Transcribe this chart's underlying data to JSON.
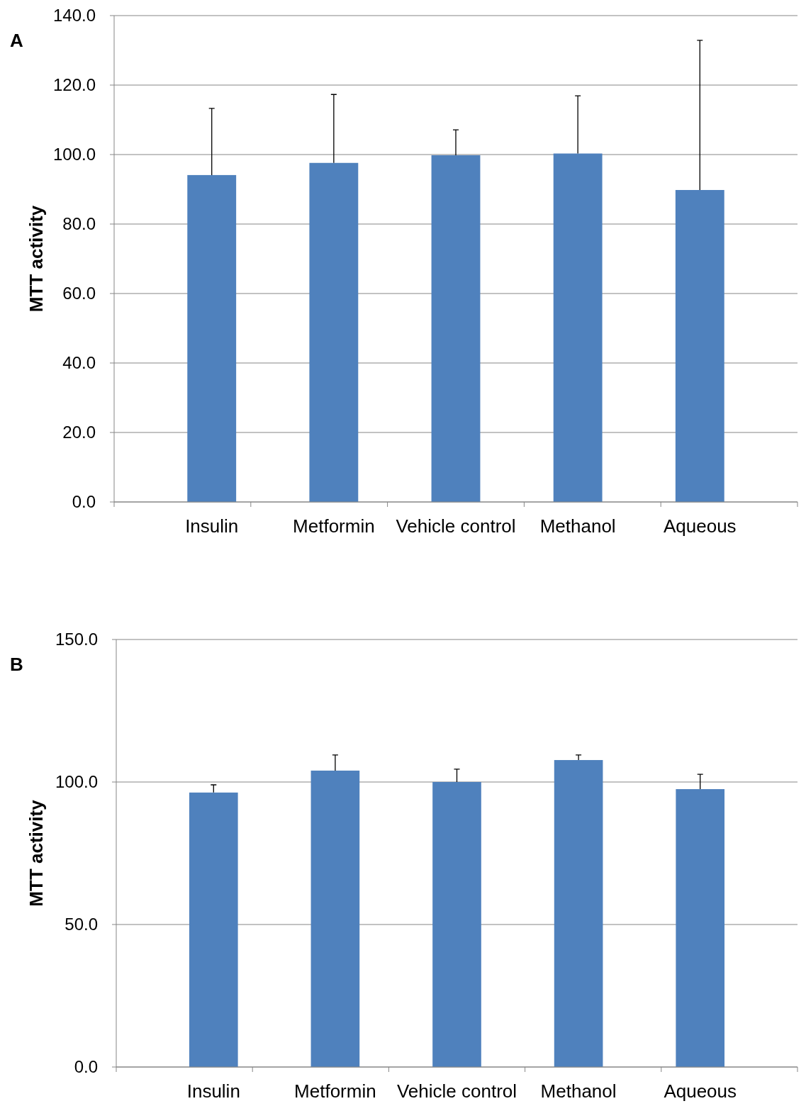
{
  "chart_data": [
    {
      "type": "bar",
      "annotations": [
        "A"
      ],
      "ylabel": "MTT activity",
      "categories": [
        "Insulin",
        "Metformin",
        "Vehicle control",
        "Methanol",
        "Aqueous"
      ],
      "values": [
        94.1,
        97.6,
        99.8,
        100.3,
        89.8
      ],
      "errors": [
        [
          94.1,
          113.3
        ],
        [
          97.6,
          117.3
        ],
        [
          99.8,
          107.1
        ],
        [
          100.3,
          116.9
        ],
        [
          89.8,
          132.9
        ]
      ],
      "color": "#4f81bd",
      "ylim": [
        0,
        140
      ],
      "yticks": [
        {
          "value": 0,
          "label": "0.0"
        },
        {
          "value": 20,
          "label": "20.0"
        },
        {
          "value": 40,
          "label": "40.0"
        },
        {
          "value": 60,
          "label": "60.0"
        },
        {
          "value": 80,
          "label": "80.0"
        },
        {
          "value": 100,
          "label": "100.0"
        },
        {
          "value": 120,
          "label": "120.0"
        },
        {
          "value": 140,
          "label": "140.0"
        }
      ],
      "grid": "y"
    },
    {
      "type": "bar",
      "annotations": [
        "B"
      ],
      "ylabel": "MTT activity",
      "categories": [
        "Insulin",
        "Metformin",
        "Vehicle control",
        "Methanol",
        "Aqueous"
      ],
      "values": [
        96.3,
        104.0,
        100.0,
        107.7,
        97.5
      ],
      "errors": [
        [
          96.3,
          99.0
        ],
        [
          104.0,
          109.5
        ],
        [
          100.0,
          104.5
        ],
        [
          107.7,
          109.5
        ],
        [
          97.5,
          102.7
        ]
      ],
      "color": "#4f81bd",
      "ylim": [
        0,
        150
      ],
      "yticks": [
        {
          "value": 0,
          "label": "0.0"
        },
        {
          "value": 50,
          "label": "50.0"
        },
        {
          "value": 100,
          "label": "100.0"
        },
        {
          "value": 150,
          "label": "150.0"
        }
      ],
      "grid": "y"
    }
  ]
}
